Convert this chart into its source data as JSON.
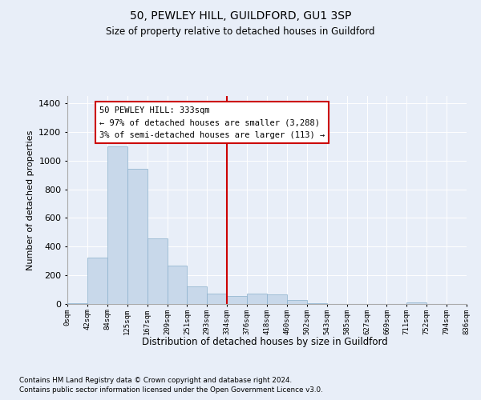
{
  "title1": "50, PEWLEY HILL, GUILDFORD, GU1 3SP",
  "title2": "Size of property relative to detached houses in Guildford",
  "xlabel": "Distribution of detached houses by size in Guildford",
  "ylabel": "Number of detached properties",
  "footnote1": "Contains HM Land Registry data © Crown copyright and database right 2024.",
  "footnote2": "Contains public sector information licensed under the Open Government Licence v3.0.",
  "annotation_line1": "50 PEWLEY HILL: 333sqm",
  "annotation_line2": "← 97% of detached houses are smaller (3,288)",
  "annotation_line3": "3% of semi-detached houses are larger (113) →",
  "bar_color": "#c8d8ea",
  "bar_edge_color": "#8ab0cc",
  "vline_color": "#cc0000",
  "vline_x": 8.0,
  "annotation_box_edge": "#cc0000",
  "ylim": [
    0,
    1450
  ],
  "yticks": [
    0,
    200,
    400,
    600,
    800,
    1000,
    1200,
    1400
  ],
  "bin_labels": [
    "0sqm",
    "42sqm",
    "84sqm",
    "125sqm",
    "167sqm",
    "209sqm",
    "251sqm",
    "293sqm",
    "334sqm",
    "376sqm",
    "418sqm",
    "460sqm",
    "502sqm",
    "543sqm",
    "585sqm",
    "627sqm",
    "669sqm",
    "711sqm",
    "752sqm",
    "794sqm",
    "836sqm"
  ],
  "bar_heights": [
    5,
    325,
    1100,
    940,
    460,
    270,
    120,
    75,
    55,
    75,
    65,
    30,
    5,
    0,
    0,
    0,
    0,
    10,
    0,
    0,
    0
  ],
  "background_color": "#e8eef8",
  "plot_bg_color": "#e8eef8",
  "fig_width": 6.0,
  "fig_height": 5.0,
  "dpi": 100
}
